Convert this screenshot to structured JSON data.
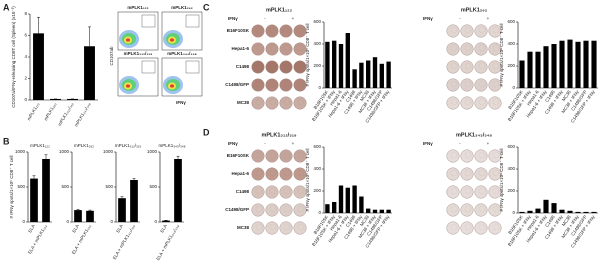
{
  "panel_labels": [
    "A",
    "B",
    "C",
    "D"
  ],
  "flow": {
    "titles": [
      "mPLK1₁₂₂",
      "mPLK1₂₆₂",
      "mPLK1₃₁₂/₃₁₉",
      "mPLK1₃₄₃/₃₄₈"
    ],
    "y_label": "CD107ab",
    "x_label": "IFNγ"
  },
  "elispot": [
    {
      "title": "mPLK1₁₂₂",
      "header": "IFNγ",
      "minus": "-",
      "plus": "+",
      "rows": [
        "B16F10SK",
        "Hepa1-6",
        "C1498",
        "C1498/GFP",
        "MC38"
      ]
    },
    {
      "title": "mPLK1₂₆₂",
      "header": "IFNγ",
      "minus": "-",
      "plus": "+"
    },
    {
      "title": "mPLK1₃₁₂/₃₁₉",
      "header": "IFNγ",
      "minus": "-",
      "plus": "+",
      "rows": [
        "B16F10SK",
        "Hepa1-6",
        "C1498",
        "C1498/GFP",
        "MC38"
      ]
    },
    {
      "title": "mPLK1₃₄₃/₃₄₈",
      "header": "IFNγ",
      "minus": "-",
      "plus": "+"
    }
  ],
  "chart_data": [
    {
      "type": "bar",
      "y_label": "CD107a/IFNγ-releasing CD8T cell (Spleen) (x10⁻³)",
      "categories": [
        "mPLK1₁₂₂",
        "mPLK1₂₆₂",
        "mPLK1₃₁₂/₃₁₉",
        "mPLK1₃₄₃/₃₄₈"
      ],
      "values": [
        6.2,
        0.1,
        0.1,
        5.0
      ],
      "errors": [
        1.5,
        0,
        0,
        1.8
      ],
      "ylim": [
        0,
        8
      ],
      "yticks": [
        0,
        2,
        4,
        6,
        8
      ],
      "color": "#000000"
    },
    {
      "type": "bar",
      "title": "mPLK1₁₂₂",
      "y_label": "# IFNγ spots/1×10⁵ CD8⁺ T cell",
      "categories": [
        "ELA",
        "ELA + mPLK1₁₂₂"
      ],
      "values": [
        620,
        900
      ],
      "errors": [
        40,
        60
      ],
      "ylim": [
        0,
        1000
      ],
      "yticks": [
        0,
        500,
        1000
      ],
      "color": "#000000"
    },
    {
      "type": "bar",
      "title": "mPLK1₂₆₂",
      "categories": [
        "ELA",
        "ELA + mPLK1₂₆₂"
      ],
      "values": [
        170,
        160
      ],
      "errors": [
        10,
        10
      ],
      "ylim": [
        0,
        1000
      ],
      "yticks": [
        0,
        500,
        1000
      ],
      "color": "#000000"
    },
    {
      "type": "bar",
      "title": "mPLK1₃₁₂/₃₁₉",
      "categories": [
        "ELA",
        "ELA + mPLK1₃₁₂/₃₁₉"
      ],
      "values": [
        340,
        600
      ],
      "errors": [
        20,
        20
      ],
      "ylim": [
        0,
        1000
      ],
      "yticks": [
        0,
        500,
        1000
      ],
      "color": "#000000"
    },
    {
      "type": "bar",
      "title": "mPLK1₃₄₃/₃₄₈",
      "categories": [
        "ELA",
        "ELA + mPLK1₃₄₃/₃₄₈"
      ],
      "values": [
        20,
        900
      ],
      "errors": [
        5,
        40
      ],
      "ylim": [
        0,
        1000
      ],
      "yticks": [
        0,
        500,
        1000
      ],
      "color": "#000000"
    },
    {
      "type": "bar",
      "y_label": "# IFNγ spots/1×10⁵ CD8⁺ T cell",
      "categories": [
        "B16F10SK",
        "B16F10SK + IFNγ",
        "Hepa1-6",
        "Hepa1-6 + IFNγ",
        "C1498",
        "C1498 + IFNγ",
        "MC38",
        "MC38 + IFNγ",
        "C1498/GFP",
        "C1498/GFP + IFNγ"
      ],
      "values": [
        420,
        430,
        400,
        500,
        170,
        230,
        250,
        280,
        220,
        240
      ],
      "ylim": [
        0,
        600
      ],
      "yticks": [
        0,
        200,
        400,
        600
      ],
      "color": "#000000"
    },
    {
      "type": "bar",
      "y_label": "# IFNγ spots/1×10⁵ CD8⁺ T cell",
      "categories": [
        "B16F10SK",
        "B16F10SK + IFNγ",
        "Hepa1-6",
        "Hepa1-6 + IFNγ",
        "C1498",
        "C1498 + IFNγ",
        "MC38",
        "MC38 + IFNγ",
        "C1498/GFP",
        "C1498/GFP + IFNγ"
      ],
      "values": [
        250,
        330,
        330,
        380,
        400,
        430,
        440,
        420,
        430,
        430
      ],
      "ylim": [
        0,
        600
      ],
      "yticks": [
        0,
        200,
        400,
        600
      ],
      "color": "#000000"
    },
    {
      "type": "bar",
      "y_label": "# IFNγ spots/1×10⁵ CD8⁺ T cell",
      "categories": [
        "B16F10SK",
        "B16F10SK + IFNγ",
        "Hepa1-6",
        "Hepa1-6 + IFNγ",
        "C1498",
        "C1498 + IFNγ",
        "MC38",
        "MC38 + IFNγ",
        "C1498/GFP",
        "C1498/GFP + IFNγ"
      ],
      "values": [
        80,
        100,
        250,
        230,
        250,
        150,
        40,
        30,
        30,
        30
      ],
      "ylim": [
        0,
        600
      ],
      "yticks": [
        0,
        200,
        400,
        600
      ],
      "color": "#000000"
    },
    {
      "type": "bar",
      "y_label": "# IFNγ spots/1×10⁵ CD8⁺ T cell",
      "categories": [
        "B16F10SK",
        "B16F10SK + IFNγ",
        "Hepa1-6",
        "Hepa1-6 + IFNγ",
        "C1498",
        "C1498 + IFNγ",
        "MC38",
        "MC38 + IFNγ",
        "C1498/GFP",
        "C1498/GFP + IFNγ"
      ],
      "values": [
        10,
        20,
        40,
        120,
        90,
        30,
        20,
        10,
        10,
        10
      ],
      "ylim": [
        0,
        600
      ],
      "yticks": [
        0,
        200,
        400,
        600
      ],
      "color": "#000000"
    }
  ]
}
